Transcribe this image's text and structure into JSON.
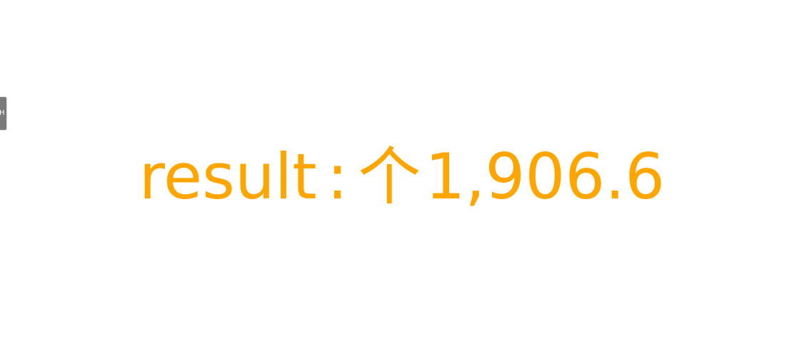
{
  "handle": {
    "glyph": "H"
  },
  "result": {
    "label": "result",
    "separator": ":",
    "unit": "个",
    "value": "1,906.6",
    "color": "#ffa500"
  }
}
